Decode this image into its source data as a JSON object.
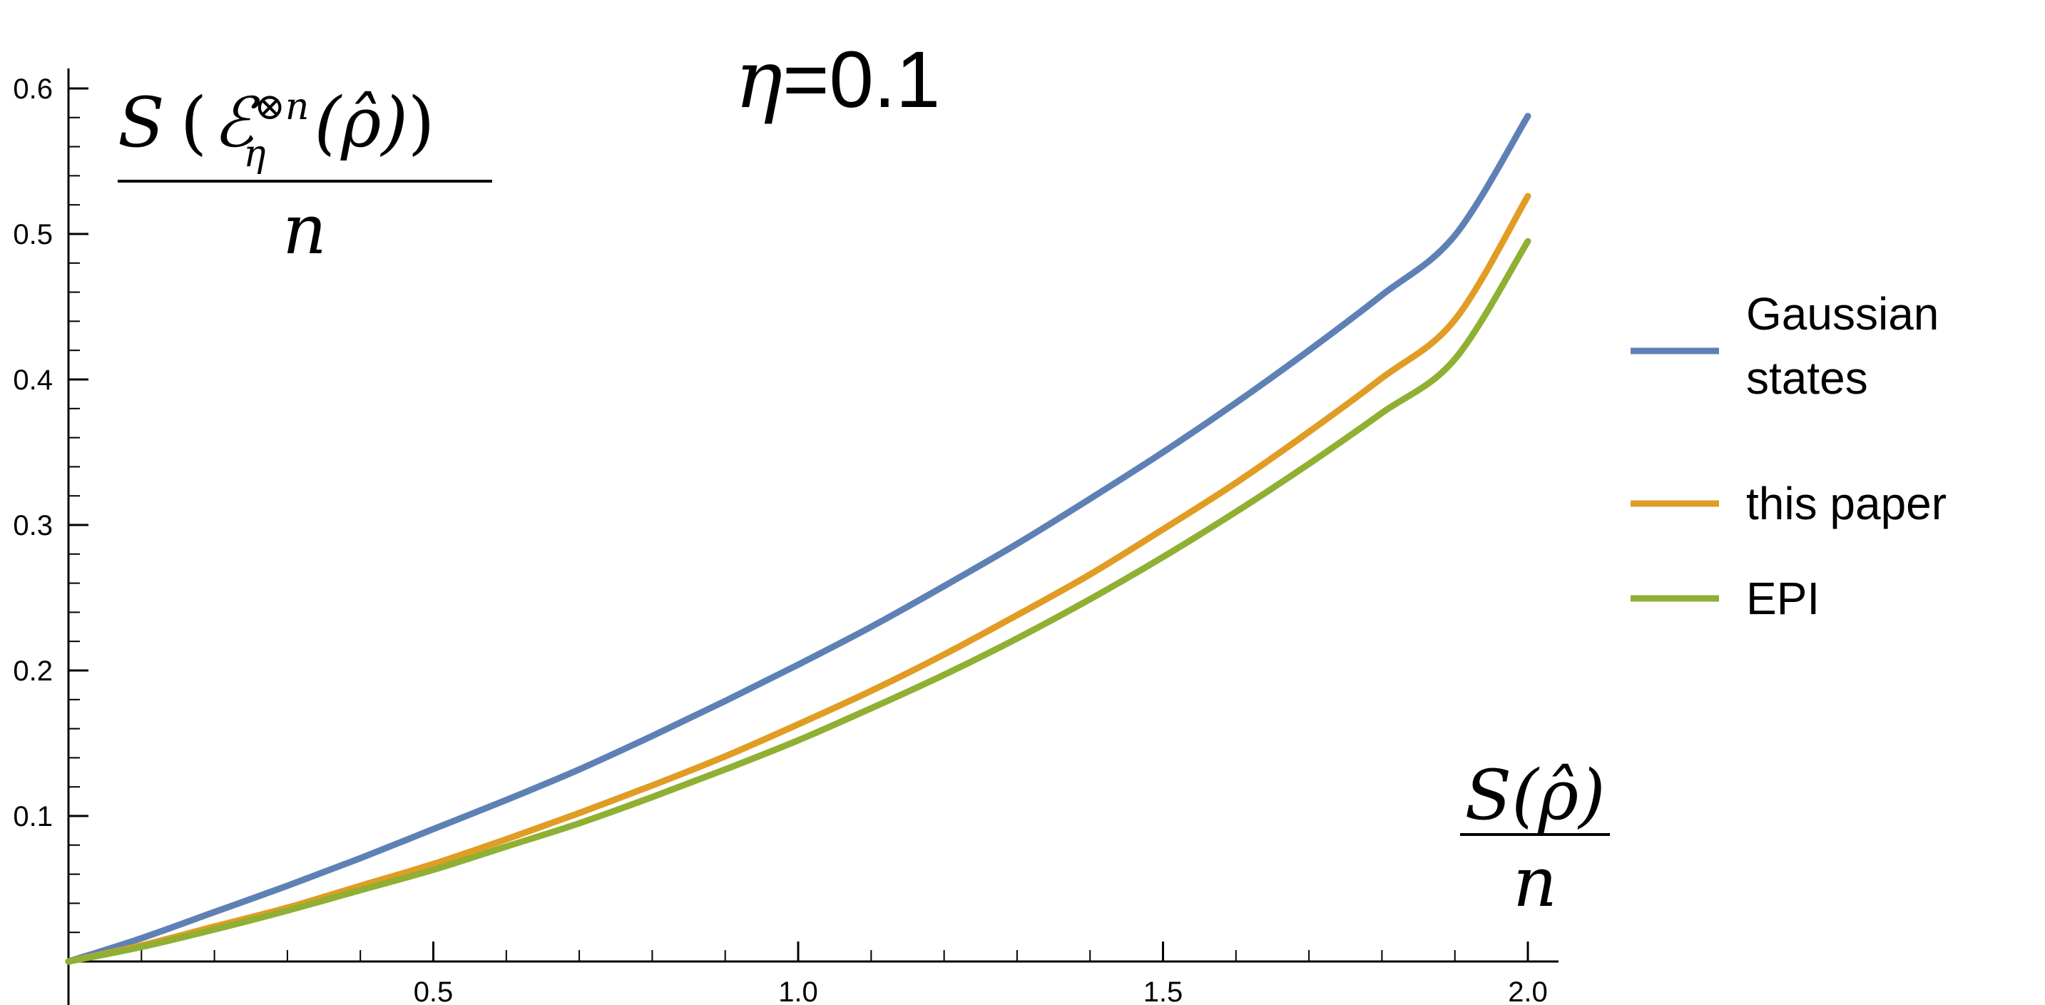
{
  "chart_data": {
    "type": "line",
    "title_prefix": "η",
    "title_suffix": "=0.1",
    "ylabel_numerator": {
      "S": "S",
      "open": "(",
      "E": "ℰ",
      "super": "⊗n",
      "sub": "η",
      "arg": "(ρ̂)",
      "close": ")"
    },
    "ylabel_denominator": "n",
    "xlabel_numerator": "S(ρ̂)",
    "xlabel_denominator": "n",
    "xlim": [
      0,
      2.05
    ],
    "ylim": [
      0,
      0.6
    ],
    "x_ticks": [
      {
        "value": 0.5,
        "label": "0.5"
      },
      {
        "value": 1.0,
        "label": "1.0"
      },
      {
        "value": 1.5,
        "label": "1.5"
      },
      {
        "value": 2.0,
        "label": "2.0"
      }
    ],
    "y_ticks": [
      {
        "value": 0.1,
        "label": "0.1"
      },
      {
        "value": 0.2,
        "label": "0.2"
      },
      {
        "value": 0.3,
        "label": "0.3"
      },
      {
        "value": 0.4,
        "label": "0.4"
      },
      {
        "value": 0.5,
        "label": "0.5"
      },
      {
        "value": 0.6,
        "label": "0.6"
      }
    ],
    "grid": false,
    "legend_position": "right",
    "series": [
      {
        "name": "Gaussian states",
        "legend_lines": [
          "Gaussian",
          "states"
        ],
        "color": "#5e81b5",
        "x": [
          0,
          0.1,
          0.2,
          0.3,
          0.4,
          0.5,
          0.6,
          0.7,
          0.8,
          0.9,
          1.0,
          1.1,
          1.2,
          1.3,
          1.4,
          1.5,
          1.6,
          1.7,
          1.8,
          1.9,
          2.0
        ],
        "y": [
          0,
          0.016,
          0.034,
          0.052,
          0.071,
          0.091,
          0.111,
          0.132,
          0.155,
          0.179,
          0.204,
          0.23,
          0.258,
          0.287,
          0.318,
          0.35,
          0.384,
          0.42,
          0.458,
          0.499,
          0.581
        ]
      },
      {
        "name": "this paper",
        "legend_lines": [
          "this paper"
        ],
        "color": "#e19c24",
        "x": [
          0,
          0.1,
          0.2,
          0.3,
          0.4,
          0.5,
          0.6,
          0.7,
          0.8,
          0.9,
          1.0,
          1.1,
          1.2,
          1.3,
          1.4,
          1.5,
          1.6,
          1.7,
          1.8,
          1.9,
          2.0
        ],
        "y": [
          0,
          0.011,
          0.024,
          0.037,
          0.052,
          0.067,
          0.084,
          0.102,
          0.121,
          0.141,
          0.163,
          0.186,
          0.211,
          0.238,
          0.266,
          0.297,
          0.329,
          0.364,
          0.401,
          0.441,
          0.526
        ]
      },
      {
        "name": "EPI",
        "legend_lines": [
          "EPI"
        ],
        "color": "#8fb032",
        "x": [
          0,
          0.1,
          0.2,
          0.3,
          0.4,
          0.5,
          0.6,
          0.7,
          0.8,
          0.9,
          1.0,
          1.1,
          1.2,
          1.3,
          1.4,
          1.5,
          1.6,
          1.7,
          1.8,
          1.9,
          2.0
        ],
        "y": [
          0,
          0.01,
          0.022,
          0.035,
          0.049,
          0.063,
          0.079,
          0.095,
          0.113,
          0.132,
          0.152,
          0.174,
          0.197,
          0.222,
          0.249,
          0.278,
          0.309,
          0.342,
          0.377,
          0.414,
          0.495
        ]
      }
    ]
  }
}
